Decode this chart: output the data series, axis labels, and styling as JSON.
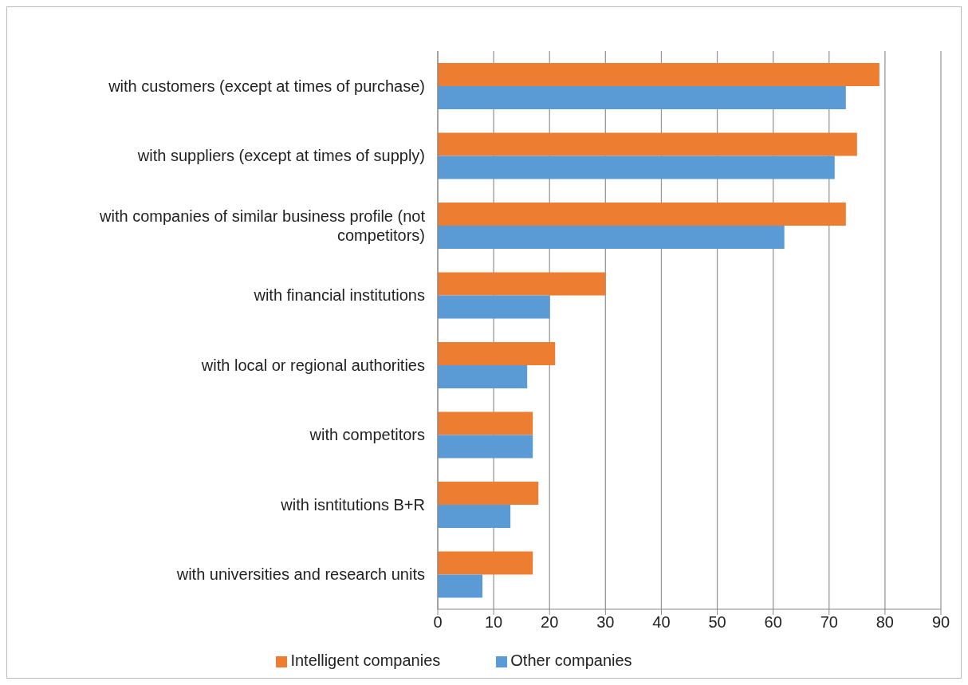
{
  "chart_data": {
    "type": "bar",
    "orientation": "horizontal",
    "categories": [
      "with customers (except at times of purchase)",
      "with suppliers (except at times of supply)",
      "with companies of similar business profile (not competitors)",
      "with financial institutions",
      "with local or regional authorities",
      "with competitors",
      "with isntitutions B+R",
      "with universities and research units"
    ],
    "series": [
      {
        "name": "Intelligent companies",
        "color": "#ed7d31",
        "values": [
          79,
          75,
          73,
          30,
          21,
          17,
          18,
          17
        ]
      },
      {
        "name": "Other companies",
        "color": "#5b9bd5",
        "values": [
          73,
          71,
          62,
          20,
          16,
          17,
          13,
          8
        ]
      }
    ],
    "xlim": [
      0,
      90
    ],
    "xticks": [
      0,
      10,
      20,
      30,
      40,
      50,
      60,
      70,
      80,
      90
    ],
    "grid": "x",
    "legend": "bottom"
  }
}
